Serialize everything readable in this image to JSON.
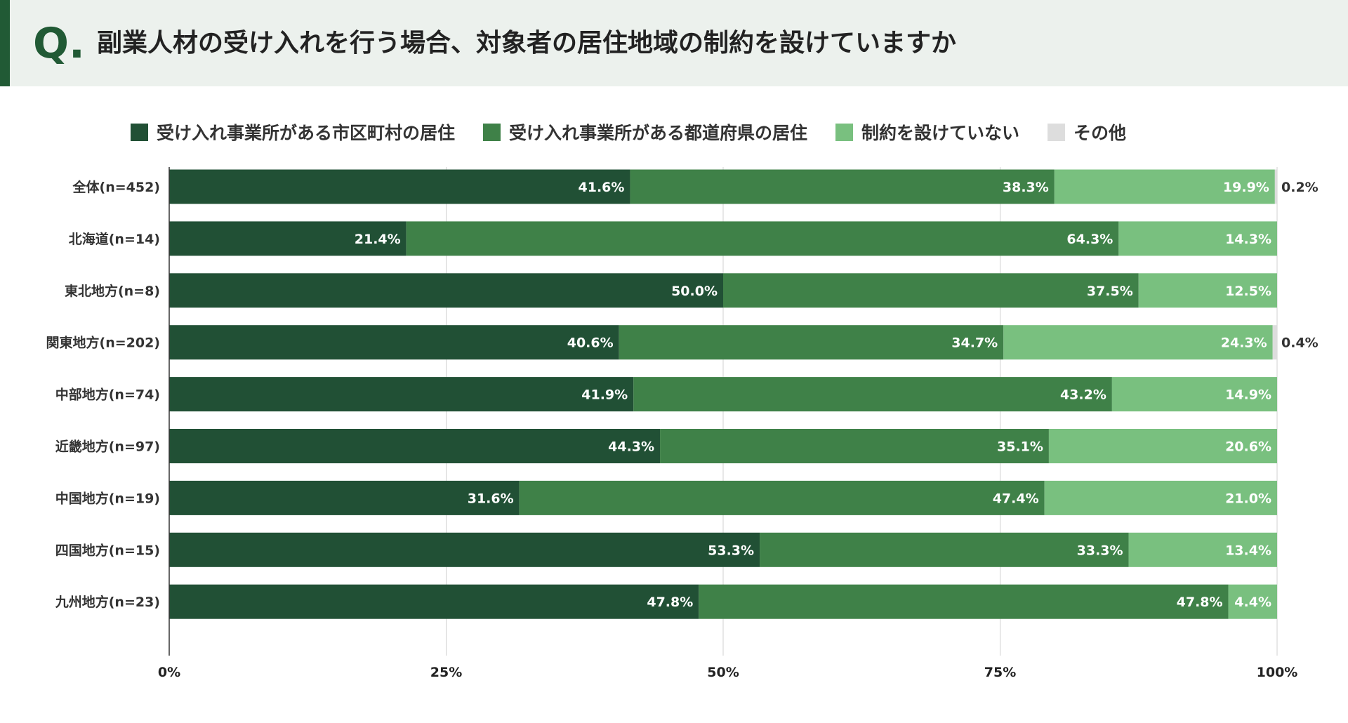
{
  "header": {
    "q_mark": "Q.",
    "question": "副業人材の受け入れを行う場合、対象者の居住地域の制約を設けていますか"
  },
  "chart_data": {
    "type": "bar",
    "orientation": "horizontal",
    "stacked": true,
    "title": "副業人材の受け入れを行う場合、対象者の居住地域の制約を設けていますか",
    "xlim": [
      0,
      100
    ],
    "grid": true,
    "legend_position": "top",
    "x_ticks": [
      {
        "value": 0,
        "label": "0%"
      },
      {
        "value": 25,
        "label": "25%"
      },
      {
        "value": 50,
        "label": "50%"
      },
      {
        "value": 75,
        "label": "75%"
      },
      {
        "value": 100,
        "label": "100%"
      }
    ],
    "categories": [
      "全体(n=452)",
      "北海道(n=14)",
      "東北地方(n=8)",
      "関東地方(n=202)",
      "中部地方(n=74)",
      "近畿地方(n=97)",
      "中国地方(n=19)",
      "四国地方(n=15)",
      "九州地方(n=23)"
    ],
    "series": [
      {
        "name": "受け入れ事業所がある市区町村の居住",
        "color": "#215035",
        "label_color": "#ffffff",
        "values": [
          41.6,
          21.4,
          50.0,
          40.6,
          41.9,
          44.3,
          31.6,
          53.3,
          47.8
        ],
        "labels": [
          "41.6%",
          "21.4%",
          "50.0%",
          "40.6%",
          "41.9%",
          "44.3%",
          "31.6%",
          "53.3%",
          "47.8%"
        ]
      },
      {
        "name": "受け入れ事業所がある都道府県の居住",
        "color": "#3f8148",
        "label_color": "#ffffff",
        "values": [
          38.3,
          64.3,
          37.5,
          34.7,
          43.2,
          35.1,
          47.4,
          33.3,
          47.8
        ],
        "labels": [
          "38.3%",
          "64.3%",
          "37.5%",
          "34.7%",
          "43.2%",
          "35.1%",
          "47.4%",
          "33.3%",
          "47.8%"
        ]
      },
      {
        "name": "制約を設けていない",
        "color": "#79c07f",
        "label_color": "#ffffff",
        "values": [
          19.9,
          14.3,
          12.5,
          24.3,
          14.9,
          20.6,
          21.0,
          13.4,
          4.4
        ],
        "labels": [
          "19.9%",
          "14.3%",
          "12.5%",
          "24.3%",
          "14.9%",
          "20.6%",
          "21.0%",
          "13.4%",
          "4.4%"
        ]
      },
      {
        "name": "その他",
        "color": "#dddddd",
        "label_color": "#333333",
        "values": [
          0.2,
          0,
          0,
          0.4,
          0,
          0,
          0,
          0,
          0
        ],
        "labels": [
          "0.2%",
          "",
          "",
          "0.4%",
          "",
          "",
          "",
          "",
          ""
        ]
      }
    ]
  }
}
